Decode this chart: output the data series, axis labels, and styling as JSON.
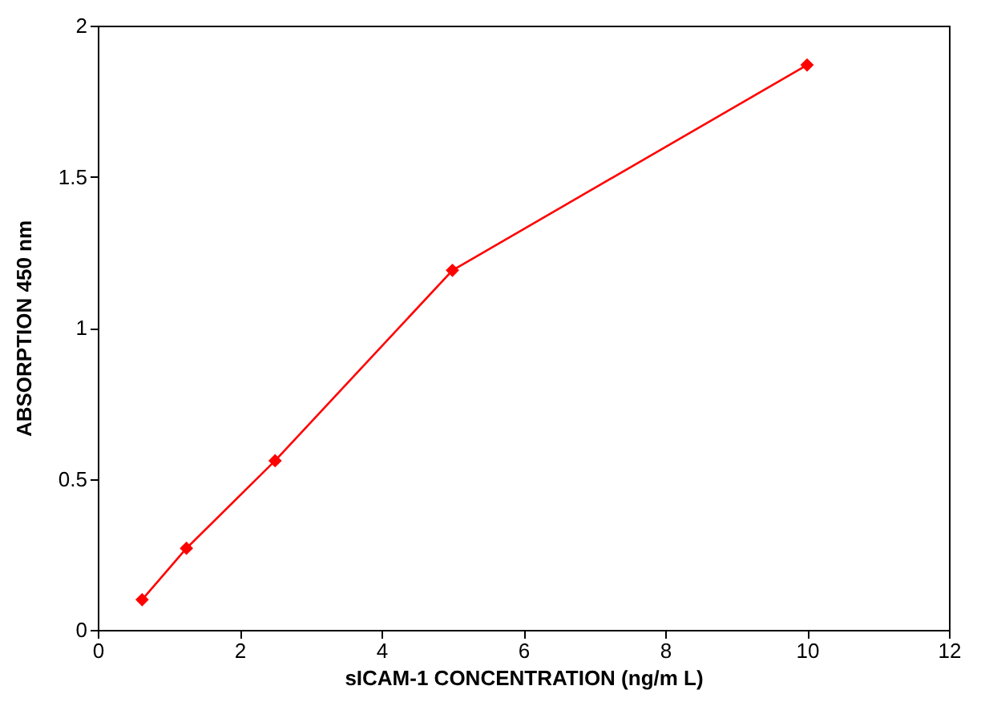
{
  "chart_data": {
    "type": "line",
    "xlabel": "sICAM-1 CONCENTRATION (ng/m L)",
    "ylabel": "ABSORPTION  450 nm",
    "x": [
      0.625,
      1.25,
      2.5,
      5,
      10
    ],
    "series": [
      {
        "color": "#ff0000",
        "values": [
          0.1,
          0.27,
          0.56,
          1.19,
          1.87
        ]
      }
    ],
    "xlim": [
      0,
      12
    ],
    "xticks": [
      0,
      2,
      4,
      6,
      8,
      10,
      12
    ],
    "ylim": [
      0,
      2
    ],
    "yticks": [
      0,
      0.5,
      1,
      1.5,
      2
    ],
    "grid": false,
    "legend": false,
    "marker": "diamond",
    "line_style": "solid"
  }
}
